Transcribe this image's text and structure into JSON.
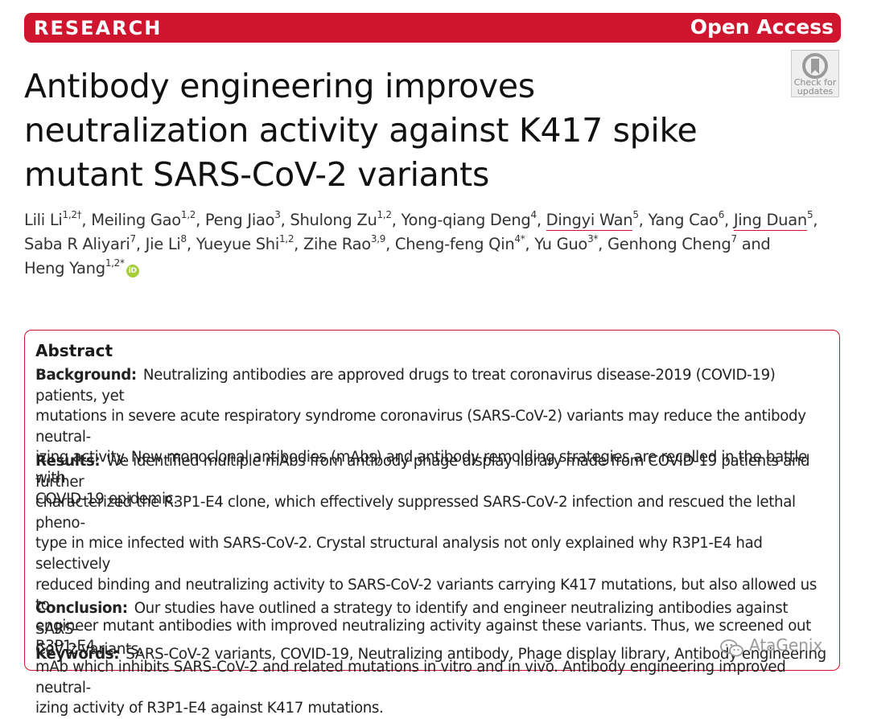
{
  "banner": {
    "left": "RESEARCH",
    "right": "Open Access",
    "color": "#d0162f"
  },
  "check_updates": {
    "line1": "Check for",
    "line2": "updates"
  },
  "title": {
    "line1": "Antibody engineering improves",
    "line2": "neutralization activity against K417 spike",
    "line3": "mutant SARS-CoV-2 variants"
  },
  "authors": [
    {
      "name": "Lili Li",
      "sup": "1,2†"
    },
    {
      "name": "Meiling Gao",
      "sup": "1,2"
    },
    {
      "name": "Peng Jiao",
      "sup": "3"
    },
    {
      "name": "Shulong Zu",
      "sup": "1,2"
    },
    {
      "name": "Yong-qiang Deng",
      "sup": "4"
    },
    {
      "name": "Dingyi Wan",
      "sup": "5"
    },
    {
      "name": "Yang Cao",
      "sup": "6"
    },
    {
      "name": "Jing Duan",
      "sup": "5"
    },
    {
      "name": "Saba R Aliyari",
      "sup": "7"
    },
    {
      "name": "Jie Li",
      "sup": "8"
    },
    {
      "name": "Yueyue Shi",
      "sup": "1,2"
    },
    {
      "name": "Zihe Rao",
      "sup": "3,9"
    },
    {
      "name": "Cheng-feng Qin",
      "sup": "4*"
    },
    {
      "name": "Yu Guo",
      "sup": "3*"
    },
    {
      "name": "Genhong Cheng",
      "sup": "7"
    },
    {
      "name": "Heng Yang",
      "sup": "1,2*"
    }
  ],
  "and_word": "and",
  "orcid_label": "iD",
  "abstract": {
    "heading": "Abstract",
    "background_label": "Background:",
    "background_lines": [
      "Neutralizing antibodies are approved drugs to treat coronavirus disease-2019 (COVID-19) patients, yet",
      "mutations in severe acute respiratory syndrome coronavirus (SARS-CoV-2) variants may reduce the antibody neutral-",
      "izing activity. New monoclonal antibodies (mAbs) and antibody remolding strategies are recalled in the battle with",
      "COVID-19 epidemic."
    ],
    "results_label": "Results:",
    "results_lines": [
      "We identified multiple mAbs from antibody phage display library made from COVID-19 patients and further",
      "characterized the R3P1-E4 clone, which effectively suppressed SARS-CoV-2 infection and rescued the lethal pheno-",
      "type in mice infected with SARS-CoV-2. Crystal structural analysis not only explained why R3P1-E4 had selectively",
      "reduced binding and neutralizing activity to SARS-CoV-2 variants carrying K417 mutations, but also allowed us to",
      "engineer mutant antibodies with improved neutralizing activity against these variants. Thus, we screened out R3P1-E4",
      "mAb which inhibits SARS-CoV-2 and related mutations in vitro and in vivo. Antibody engineering improved neutral-",
      "izing activity of R3P1-E4 against K417 mutations."
    ],
    "conclusion_label": "Conclusion:",
    "conclusion_lines": [
      "Our studies have outlined a strategy to identify and engineer neutralizing antibodies against SARS-",
      "CoV-2 variants."
    ],
    "keywords_label": "Keywords:",
    "keywords_text": "SARS-CoV-2 variants, COVID-19, Neutralizing antibody, Phage display library, Antibody engineering"
  },
  "watermark": {
    "text": "AtaGenix",
    "icon": "wechat-icon"
  }
}
